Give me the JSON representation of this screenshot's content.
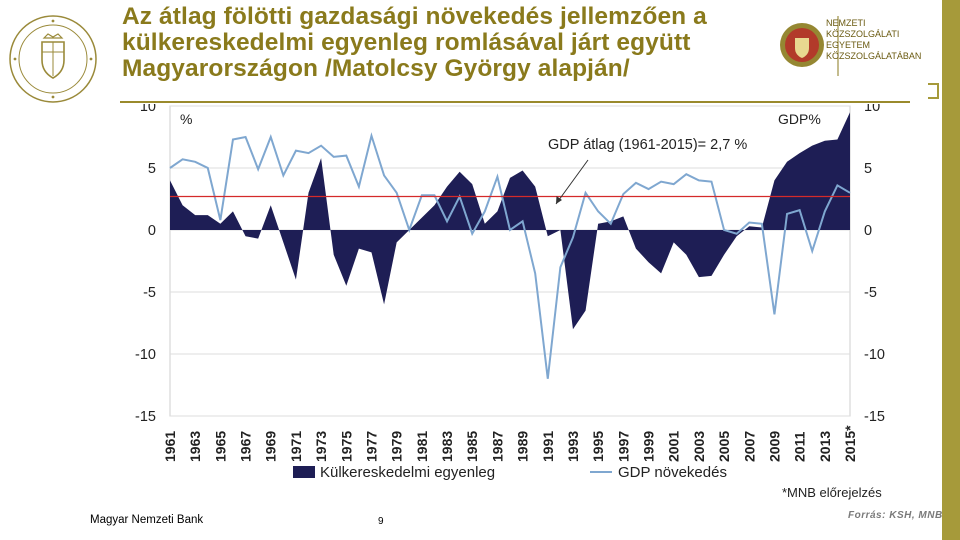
{
  "slide": {
    "title_lines": [
      "Az átlag fölötti gazdasági növekedés jellemzően a",
      "külkereskedelmi egyenleg romlásával járt együtt",
      "Magyarországon /Matolcsy György alapján/"
    ],
    "logo_right_lines": [
      "NEMZETI",
      "KÖZSZOLGÁLATI",
      "EGYETEM",
      "KÖZSZOLGÁLATÁBAN"
    ],
    "footnote": "*MNB előrejelzés",
    "footer_left": "Magyar Nemzeti Bank",
    "page_number": "9",
    "source": "Forrás: KSH, MNB",
    "colors": {
      "title": "#8a7a1c",
      "area": "#1e1e55",
      "line": "#7fa7d0",
      "average": "#d42a2a",
      "grid": "#dddddd",
      "accent_bar": "#a69a3a"
    }
  },
  "chart_data": {
    "type": "area+line",
    "left_axis_unit": "%",
    "right_axis_unit": "GDP%",
    "yticks": [
      10,
      5,
      0,
      -5,
      -10,
      -15
    ],
    "ylim": [
      -15,
      10
    ],
    "xlim": [
      1961,
      2015
    ],
    "x_tick_labels": [
      "1961",
      "1963",
      "1965",
      "1967",
      "1969",
      "1971",
      "1973",
      "1975",
      "1977",
      "1979",
      "1981",
      "1983",
      "1985",
      "1987",
      "1989",
      "1991",
      "1993",
      "1995",
      "1997",
      "1999",
      "2001",
      "2003",
      "2005",
      "2007",
      "2009",
      "2011",
      "2013",
      "2015*"
    ],
    "annotation": "GDP átlag (1961-2015)= 2,7 %",
    "average_line": 2.7,
    "x": [
      1961,
      1962,
      1963,
      1964,
      1965,
      1966,
      1967,
      1968,
      1969,
      1970,
      1971,
      1972,
      1973,
      1974,
      1975,
      1976,
      1977,
      1978,
      1979,
      1980,
      1981,
      1982,
      1983,
      1984,
      1985,
      1986,
      1987,
      1988,
      1989,
      1990,
      1991,
      1992,
      1993,
      1994,
      1995,
      1996,
      1997,
      1998,
      1999,
      2000,
      2001,
      2002,
      2003,
      2004,
      2005,
      2006,
      2007,
      2008,
      2009,
      2010,
      2011,
      2012,
      2013,
      2014,
      2015
    ],
    "series": [
      {
        "name": "Külkereskedelmi egyenleg",
        "type": "area",
        "values": [
          4.0,
          2.0,
          1.2,
          1.2,
          0.5,
          1.5,
          -0.5,
          -0.7,
          2.0,
          -1.0,
          -4.0,
          3.0,
          5.8,
          -2.0,
          -4.5,
          -1.5,
          -1.8,
          -6.0,
          -1.0,
          0.0,
          1.0,
          2.0,
          3.5,
          4.7,
          3.7,
          0.5,
          1.5,
          4.2,
          4.8,
          3.5,
          -0.5,
          0.0,
          -8.0,
          -6.5,
          0.5,
          0.7,
          1.1,
          -1.5,
          -2.6,
          -3.5,
          -1.0,
          -2.0,
          -3.8,
          -3.7,
          -2.0,
          -0.5,
          0.3,
          0.2,
          4.0,
          5.5,
          6.2,
          6.8,
          7.2,
          7.3,
          9.5
        ]
      },
      {
        "name": "GDP növekedés",
        "type": "line",
        "values": [
          5.0,
          5.7,
          5.5,
          5.0,
          0.8,
          7.3,
          7.5,
          4.9,
          7.5,
          4.4,
          6.4,
          6.2,
          6.8,
          5.9,
          6.0,
          3.5,
          7.6,
          4.4,
          3.0,
          0.0,
          2.8,
          2.8,
          0.7,
          2.7,
          -0.3,
          1.5,
          4.3,
          0.0,
          0.7,
          -3.5,
          -12.0,
          -3.0,
          -0.6,
          3.0,
          1.5,
          0.5,
          2.9,
          3.8,
          3.3,
          3.9,
          3.7,
          4.5,
          4.0,
          3.9,
          0.0,
          -0.3,
          0.6,
          0.5,
          -6.8,
          1.3,
          1.6,
          -1.7,
          1.5,
          3.6,
          3.0
        ]
      }
    ]
  }
}
